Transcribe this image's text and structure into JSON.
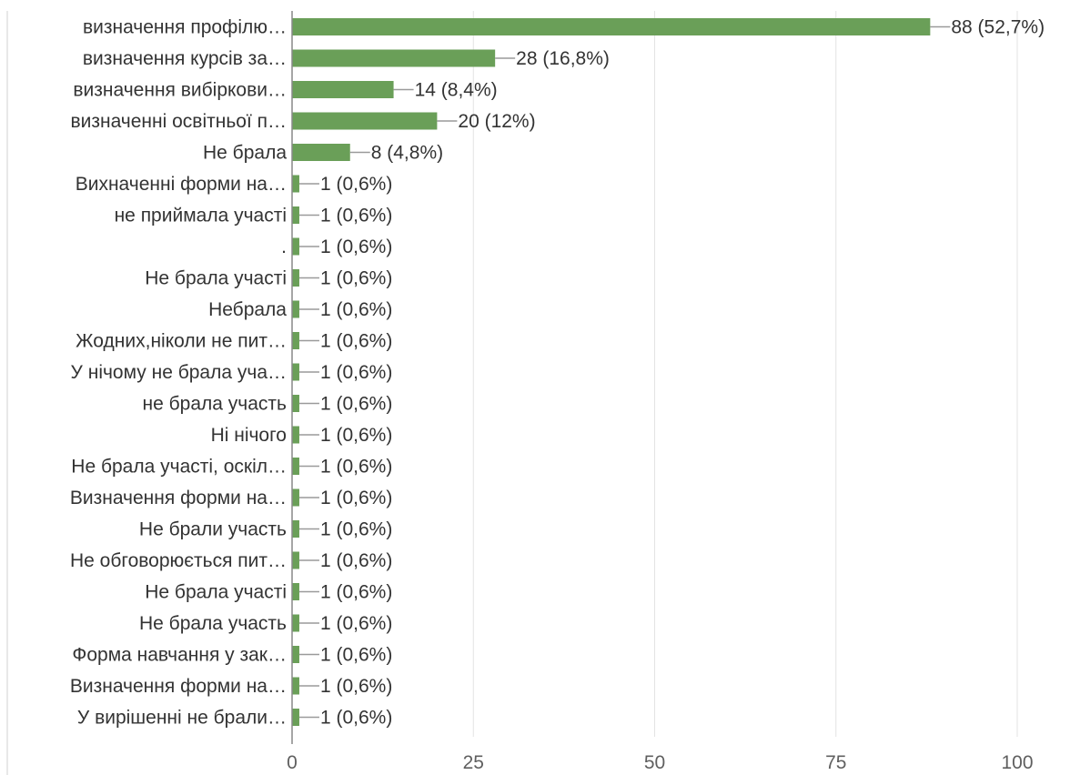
{
  "chart_data": {
    "type": "bar",
    "orientation": "horizontal",
    "categories": [
      "визначення профілю…",
      "визначення курсів за…",
      "визначення вибіркови…",
      "визначенні освітньої п…",
      "Не брала",
      "Вихначенні форми на…",
      "не приймала участі",
      ".",
      "Не брала участі",
      "Небрала",
      "Жодних,ніколи не пит…",
      "У нічому не брала уча…",
      "не брала участь",
      "Ні нічого",
      "Не брала участі, оскіл…",
      "Визначення форми на…",
      "Не брали участь",
      "Не обговорюється пит…",
      "Не брала участі",
      "Не брала участь",
      "Форма навчання у зак…",
      "Визначення форми на…",
      "У вирішенні не брали…"
    ],
    "values": [
      88,
      28,
      14,
      20,
      8,
      1,
      1,
      1,
      1,
      1,
      1,
      1,
      1,
      1,
      1,
      1,
      1,
      1,
      1,
      1,
      1,
      1,
      1
    ],
    "value_labels": [
      "88 (52,7%)",
      "28 (16,8%)",
      "14 (8,4%)",
      "20 (12%)",
      "8 (4,8%)",
      "1 (0,6%)",
      "1 (0,6%)",
      "1 (0,6%)",
      "1 (0,6%)",
      "1 (0,6%)",
      "1 (0,6%)",
      "1 (0,6%)",
      "1 (0,6%)",
      "1 (0,6%)",
      "1 (0,6%)",
      "1 (0,6%)",
      "1 (0,6%)",
      "1 (0,6%)",
      "1 (0,6%)",
      "1 (0,6%)",
      "1 (0,6%)",
      "1 (0,6%)",
      "1 (0,6%)"
    ],
    "xlim": [
      0,
      100
    ],
    "xticks": [
      0,
      25,
      50,
      75,
      100
    ],
    "xtick_labels": [
      "0",
      "25",
      "50",
      "75",
      "100"
    ],
    "grid": "vertical",
    "legend": "none",
    "colors": {
      "bar": "#6a9f58",
      "grid": "#e3e3e3",
      "axis": "#888888",
      "leader": "#9a9a9a"
    }
  }
}
